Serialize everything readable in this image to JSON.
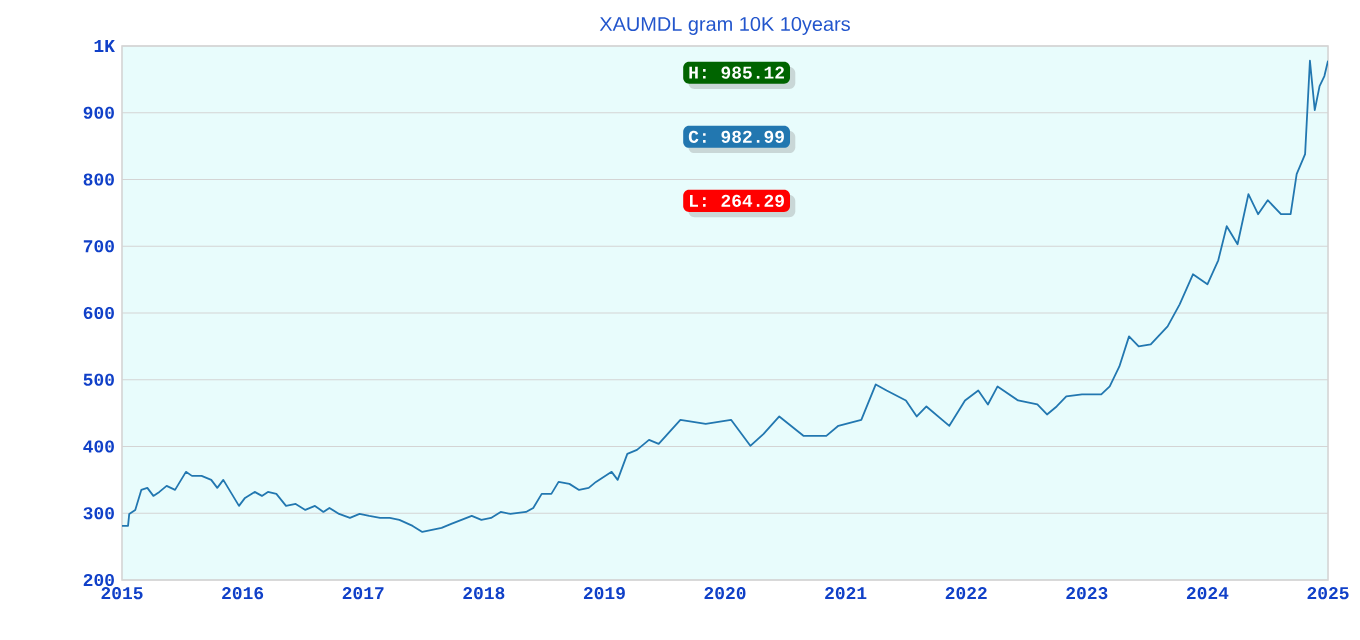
{
  "chart_data": {
    "type": "line",
    "title": "XAUMDL gram 10K 10years",
    "x": [
      2015.0,
      2015.05,
      2015.06,
      2015.11,
      2015.16,
      2015.21,
      2015.26,
      2015.31,
      2015.37,
      2015.44,
      2015.47,
      2015.53,
      2015.58,
      2015.66,
      2015.74,
      2015.79,
      2015.84,
      2015.91,
      2015.97,
      2016.02,
      2016.1,
      2016.16,
      2016.21,
      2016.28,
      2016.36,
      2016.44,
      2016.52,
      2016.6,
      2016.67,
      2016.72,
      2016.8,
      2016.89,
      2016.97,
      2017.05,
      2017.14,
      2017.22,
      2017.3,
      2017.41,
      2017.49,
      2017.57,
      2017.65,
      2017.73,
      2017.9,
      2017.98,
      2018.06,
      2018.14,
      2018.22,
      2018.35,
      2018.41,
      2018.48,
      2018.56,
      2018.62,
      2018.71,
      2018.79,
      2018.87,
      2018.93,
      2019.06,
      2019.11,
      2019.19,
      2019.27,
      2019.37,
      2019.45,
      2019.63,
      2019.84,
      2020.05,
      2020.21,
      2020.32,
      2020.45,
      2020.65,
      2020.84,
      2020.94,
      2021.13,
      2021.25,
      2021.34,
      2021.5,
      2021.59,
      2021.67,
      2021.86,
      2021.99,
      2022.1,
      2022.18,
      2022.26,
      2022.43,
      2022.59,
      2022.67,
      2022.75,
      2022.83,
      2022.96,
      2023.12,
      2023.19,
      2023.27,
      2023.35,
      2023.43,
      2023.53,
      2023.67,
      2023.77,
      2023.88,
      2024.0,
      2024.09,
      2024.16,
      2024.25,
      2024.34,
      2024.42,
      2024.5,
      2024.61,
      2024.69,
      2024.74,
      2024.81,
      2024.85,
      2024.89,
      2024.93,
      2024.97,
      2025.0
    ],
    "series": [
      {
        "color": "#2277b0",
        "values": [
          281,
          281,
          299,
          305,
          335,
          338,
          326,
          332,
          341,
          335,
          344,
          362,
          356,
          356,
          350,
          338,
          350,
          329,
          311,
          323,
          332,
          326,
          332,
          329,
          311,
          314,
          305,
          311,
          302,
          308,
          299,
          293,
          299,
          296,
          293,
          293,
          290,
          281,
          272,
          275,
          278,
          284,
          296,
          290,
          293,
          302,
          299,
          302,
          308,
          329,
          329,
          347,
          344,
          335,
          338,
          347,
          362,
          350,
          389,
          395,
          410,
          404,
          440,
          434,
          440,
          401,
          419,
          445,
          416,
          416,
          431,
          440,
          493,
          484,
          469,
          445,
          460,
          431,
          469,
          484,
          463,
          490,
          469,
          463,
          448,
          460,
          475,
          478,
          478,
          490,
          520,
          565,
          550,
          553,
          580,
          613,
          658,
          643,
          679,
          730,
          703,
          778,
          748,
          769,
          748,
          748,
          808,
          838,
          978,
          904,
          940,
          955,
          978
        ]
      }
    ],
    "xlim": [
      2015,
      2025
    ],
    "ylim": [
      200,
      1000
    ],
    "xticks": [
      2015,
      2016,
      2017,
      2018,
      2019,
      2020,
      2021,
      2022,
      2023,
      2024,
      2025
    ],
    "yticks": [
      200,
      300,
      400,
      500,
      600,
      700,
      800,
      900,
      {
        "value": 1000,
        "label": "1K"
      }
    ],
    "grid": "y",
    "annotations": [
      "H: 985.12",
      "C: 982.99",
      "L: 264.29"
    ]
  }
}
